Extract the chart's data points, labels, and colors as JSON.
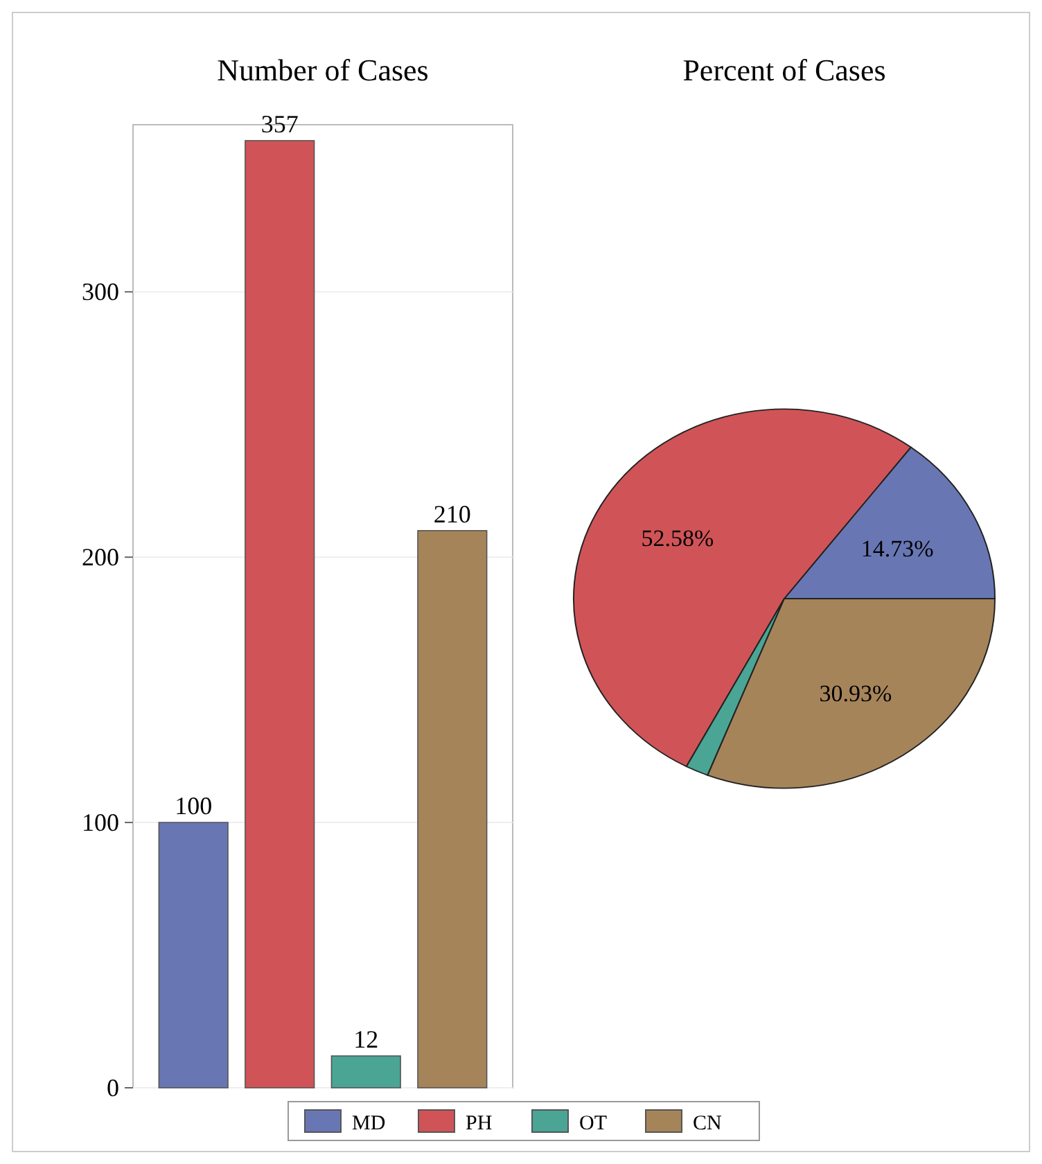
{
  "chart_data": [
    {
      "type": "bar",
      "title": "Number of Cases",
      "categories": [
        null,
        null,
        null,
        null
      ],
      "values": [
        100,
        357,
        12,
        210
      ],
      "colors": [
        "#6877b4",
        "#d05457",
        "#4aa595",
        "#a6845a"
      ],
      "ylim": [
        0,
        363
      ],
      "yticks": [
        0,
        100,
        200,
        300
      ],
      "grid": "y",
      "data_labels": true,
      "tick_labels": "y"
    },
    {
      "type": "pie",
      "title": "Percent of Cases",
      "categories": [
        "MD",
        "PH",
        "OT",
        "CN"
      ],
      "values": [
        14.73,
        52.58,
        1.76,
        30.93
      ],
      "colors": [
        "#6877b4",
        "#d05457",
        "#4aa595",
        "#a6845a"
      ],
      "value_labels": [
        "14.73%",
        "52.58%",
        null,
        "30.93%"
      ],
      "legend": "bottom"
    }
  ]
}
